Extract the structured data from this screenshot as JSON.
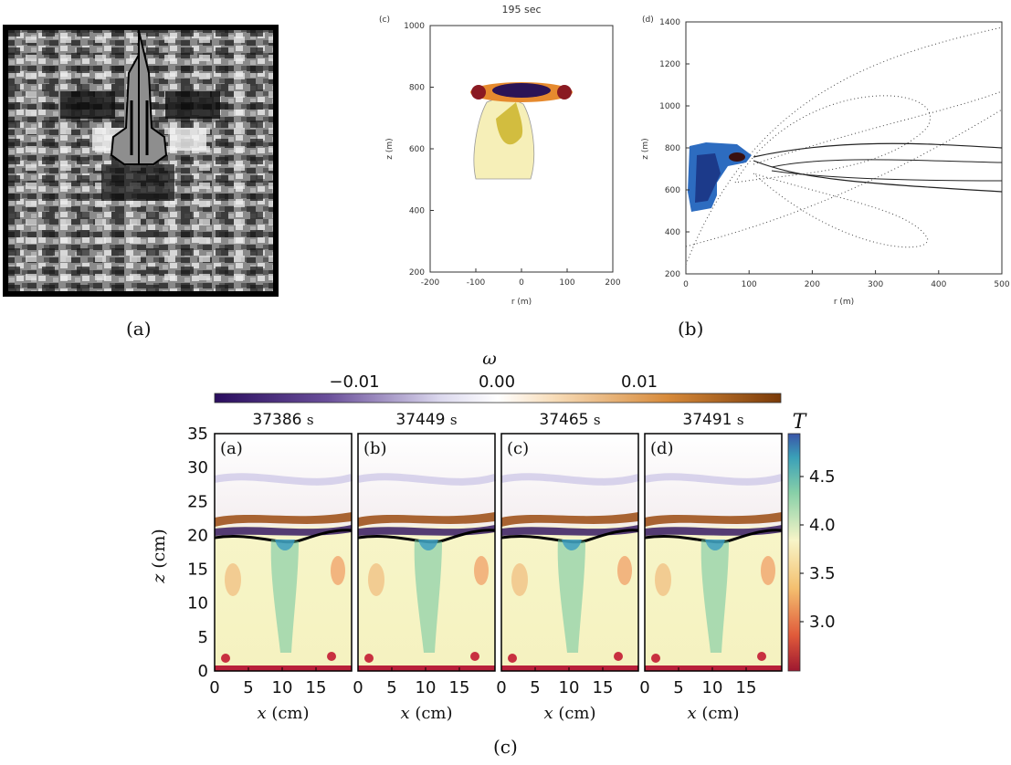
{
  "figure": {
    "panel_a": {
      "caption": "(a)"
    },
    "panel_b": {
      "caption": "(b)",
      "left": {
        "tag": "(c)",
        "time": "195 sec",
        "xlabel": "r (m)",
        "ylabel": "z (m)",
        "xticks": [
          "-200",
          "-100",
          "0",
          "100",
          "200"
        ],
        "yticks": [
          "200",
          "400",
          "600",
          "800",
          "1000"
        ]
      },
      "right": {
        "tag": "(d)",
        "xlabel": "r (m)",
        "ylabel": "z (m)",
        "xticks": [
          "0",
          "100",
          "200",
          "300",
          "400",
          "500"
        ],
        "yticks": [
          "200",
          "400",
          "600",
          "800",
          "1000",
          "1200",
          "1400"
        ]
      }
    },
    "panel_c": {
      "caption": "(c)",
      "colorbar_omega": {
        "symbol": "ω",
        "ticks": [
          "−0.01",
          "0.00",
          "0.01"
        ]
      },
      "colorbar_T": {
        "symbol": "T",
        "ticks": [
          "4.5",
          "4.0",
          "3.5",
          "3.0"
        ]
      },
      "ylabel": "z (cm)",
      "xlabel": "x (cm)",
      "yticks": [
        "35",
        "30",
        "25",
        "20",
        "15",
        "10",
        "5",
        "0"
      ],
      "xticks": [
        "0",
        "5",
        "10",
        "15"
      ],
      "subpanels": [
        {
          "tag": "(a)",
          "time": "37386",
          "unit": "s"
        },
        {
          "tag": "(b)",
          "time": "37449",
          "unit": "s"
        },
        {
          "tag": "(c)",
          "time": "37465",
          "unit": "s"
        },
        {
          "tag": "(d)",
          "time": "37491",
          "unit": "s"
        }
      ]
    }
  },
  "colors": {
    "omega_neg": "#2a0d5e",
    "omega_pos": "#7a3a08",
    "T_hot": "#3a55a8",
    "T_cool": "#f7f5c8"
  }
}
